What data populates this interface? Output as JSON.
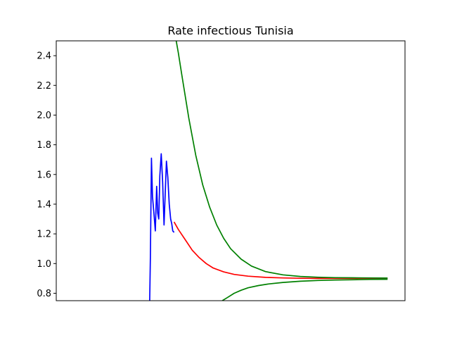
{
  "chart_data": {
    "type": "line",
    "title": "Rate infectious Tunisia",
    "xlabel": "",
    "ylabel": "",
    "xlim": [
      0,
      100
    ],
    "ylim": [
      0.75,
      2.5
    ],
    "x_ticks_shown": false,
    "y_ticks": [
      0.8,
      1.0,
      1.2,
      1.4,
      1.6,
      1.8,
      2.0,
      2.2,
      2.4
    ],
    "y_tick_labels": [
      "0.8",
      "1.0",
      "1.2",
      "1.4",
      "1.6",
      "1.8",
      "2.0",
      "2.2",
      "2.4"
    ],
    "grid": false,
    "legend": false,
    "series": [
      {
        "color": "#0000ff",
        "x": [
          26.8,
          27.0,
          27.3,
          27.6,
          28.0,
          28.4,
          28.8,
          29.1,
          29.4,
          29.7,
          30.1,
          30.5,
          30.9,
          31.2,
          31.6,
          32.0,
          32.4,
          32.8,
          33.1,
          33.4,
          33.8
        ],
        "y": [
          0.75,
          1.05,
          1.71,
          1.45,
          1.34,
          1.22,
          1.52,
          1.34,
          1.3,
          1.59,
          1.74,
          1.55,
          1.26,
          1.45,
          1.69,
          1.58,
          1.4,
          1.3,
          1.27,
          1.22,
          1.21
        ]
      },
      {
        "color": "#ff0000",
        "x": [
          33.8,
          35,
          37,
          39,
          41,
          43,
          45,
          48,
          51,
          55,
          60,
          65,
          70,
          75,
          80,
          85,
          90,
          95
        ],
        "y": [
          1.28,
          1.23,
          1.16,
          1.09,
          1.04,
          1.0,
          0.97,
          0.944,
          0.927,
          0.915,
          0.907,
          0.903,
          0.901,
          0.9,
          0.9,
          0.9,
          0.9,
          0.9
        ]
      },
      {
        "color": "#008000",
        "x": [
          34.4,
          35,
          36,
          38,
          40,
          42,
          44,
          46,
          48,
          50,
          53,
          56,
          60,
          65,
          70,
          75,
          80,
          85,
          90,
          95
        ],
        "y": [
          2.5,
          2.42,
          2.27,
          1.98,
          1.73,
          1.53,
          1.38,
          1.26,
          1.17,
          1.1,
          1.03,
          0.983,
          0.946,
          0.924,
          0.913,
          0.908,
          0.905,
          0.904,
          0.903,
          0.902
        ]
      },
      {
        "color": "#008000",
        "x": [
          47.6,
          49,
          51,
          53,
          55,
          58,
          61,
          65,
          70,
          75,
          80,
          85,
          90,
          95
        ],
        "y": [
          0.75,
          0.77,
          0.8,
          0.82,
          0.837,
          0.852,
          0.863,
          0.873,
          0.881,
          0.886,
          0.889,
          0.891,
          0.893,
          0.894
        ]
      }
    ]
  }
}
